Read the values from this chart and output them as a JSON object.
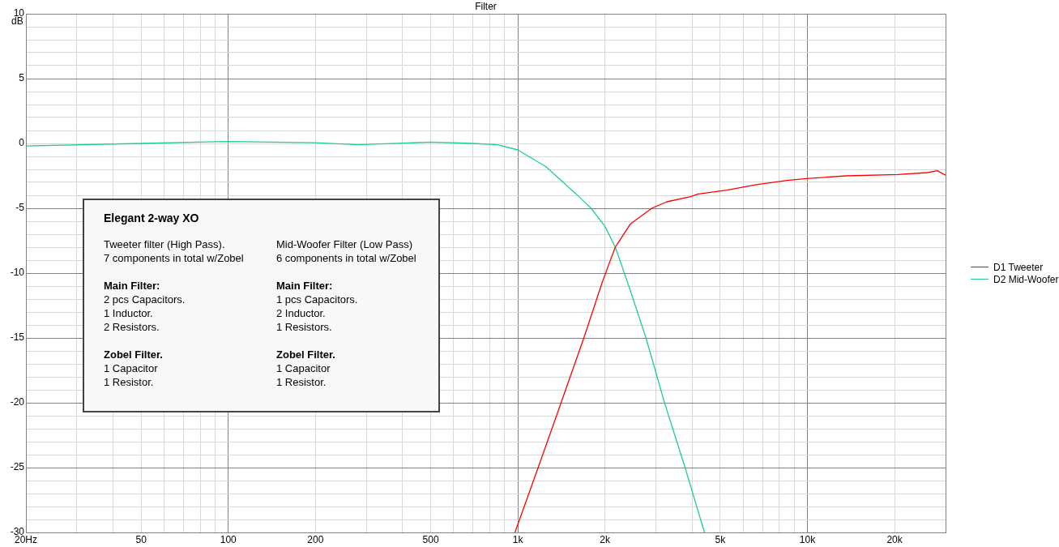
{
  "chart_data": {
    "type": "line",
    "title": "Filter",
    "ylabel": "dB",
    "log": "x",
    "grid": true,
    "legend": "right",
    "marker": "none",
    "line_style": "solid",
    "xlim": [
      20,
      30000
    ],
    "ylim": [
      -30,
      10
    ],
    "xticks": [
      {
        "value": 20,
        "label": "20Hz"
      },
      {
        "value": 30,
        "label": null
      },
      {
        "value": 40,
        "label": null
      },
      50,
      {
        "value": 60,
        "label": null
      },
      {
        "value": 70,
        "label": null
      },
      {
        "value": 80,
        "label": null
      },
      {
        "value": 90,
        "label": null
      },
      100,
      200,
      {
        "value": 300,
        "label": null
      },
      {
        "value": 400,
        "label": null
      },
      500,
      {
        "value": 600,
        "label": null
      },
      {
        "value": 700,
        "label": null
      },
      {
        "value": 800,
        "label": null
      },
      {
        "value": 900,
        "label": null
      },
      {
        "value": 1000,
        "label": "1k"
      },
      {
        "value": 2000,
        "label": "2k"
      },
      {
        "value": 3000,
        "label": null
      },
      {
        "value": 4000,
        "label": null
      },
      {
        "value": 5000,
        "label": "5k"
      },
      {
        "value": 6000,
        "label": null
      },
      {
        "value": 7000,
        "label": null
      },
      {
        "value": 8000,
        "label": null
      },
      {
        "value": 9000,
        "label": null
      },
      {
        "value": 10000,
        "label": "10k"
      },
      {
        "value": 20000,
        "label": "20k"
      }
    ],
    "yticks": [
      -30,
      {
        "value": -29,
        "label": null
      },
      {
        "value": -28,
        "label": null
      },
      {
        "value": -27,
        "label": null
      },
      {
        "value": -26,
        "label": null
      },
      -25,
      {
        "value": -24,
        "label": null
      },
      {
        "value": -23,
        "label": null
      },
      {
        "value": -22,
        "label": null
      },
      {
        "value": -21,
        "label": null
      },
      -20,
      {
        "value": -19,
        "label": null
      },
      {
        "value": -18,
        "label": null
      },
      {
        "value": -17,
        "label": null
      },
      {
        "value": -16,
        "label": null
      },
      -15,
      {
        "value": -14,
        "label": null
      },
      {
        "value": -13,
        "label": null
      },
      {
        "value": -12,
        "label": null
      },
      {
        "value": -11,
        "label": null
      },
      -10,
      {
        "value": -9,
        "label": null
      },
      {
        "value": -8,
        "label": null
      },
      {
        "value": -7,
        "label": null
      },
      {
        "value": -6,
        "label": null
      },
      -5,
      {
        "value": -4,
        "label": null
      },
      {
        "value": -3,
        "label": null
      },
      {
        "value": -2,
        "label": null
      },
      {
        "value": -1,
        "label": null
      },
      0,
      {
        "value": 1,
        "label": null
      },
      {
        "value": 2,
        "label": null
      },
      {
        "value": 3,
        "label": null
      },
      {
        "value": 4,
        "label": null
      },
      5,
      {
        "value": 6,
        "label": null
      },
      {
        "value": 7,
        "label": null
      },
      {
        "value": 8,
        "label": null
      },
      {
        "value": 9,
        "label": null
      },
      10
    ],
    "series": [
      {
        "name": "D1 Tweeter",
        "color": "#ff0000",
        "x": [
          977,
          1175,
          1410,
          1690,
          1950,
          2040,
          2170,
          2450,
          2900,
          3270,
          3950,
          4200,
          5270,
          6600,
          8500,
          10100,
          13600,
          20500,
          26000,
          28100,
          30000
        ],
        "values": [
          -30,
          -25,
          -20,
          -15,
          -10.8,
          -9.6,
          -8.0,
          -6.2,
          -5.0,
          -4.5,
          -4.1,
          -3.9,
          -3.6,
          -3.2,
          -2.85,
          -2.7,
          -2.5,
          -2.4,
          -2.25,
          -2.1,
          -2.45
        ]
      },
      {
        "name": "D2 Mid-Woofer",
        "color": "#1fcc99",
        "x": [
          20,
          50,
          100,
          200,
          280,
          500,
          700,
          850,
          1000,
          1250,
          1590,
          1790,
          2000,
          2170,
          2400,
          2770,
          3210,
          3780,
          4410
        ],
        "values": [
          -0.2,
          0.0,
          0.15,
          0.05,
          -0.1,
          0.1,
          0.0,
          -0.1,
          -0.5,
          -1.8,
          -3.9,
          -5.0,
          -6.4,
          -8.0,
          -10.8,
          -15,
          -20,
          -25,
          -30
        ]
      }
    ],
    "annotations": [
      "Elegant 2-way XO",
      "Tweeter filter (High Pass).\n7 components in total w/Zobel",
      "Mid-Woofer Filter (Low Pass)\n6 components in total w/Zobel",
      "Main Filter:",
      "Main Filter:",
      "2 pcs Capacitors.\n1 Inductor.\n2 Resistors.",
      "1 pcs Capacitors.\n2 Inductor.\n1 Resistors.",
      "Zobel Filter.",
      "Zobel Filter.",
      "1 Capacitor\n1 Resistor.",
      "1 Capacitor\n1 Resistor."
    ]
  }
}
